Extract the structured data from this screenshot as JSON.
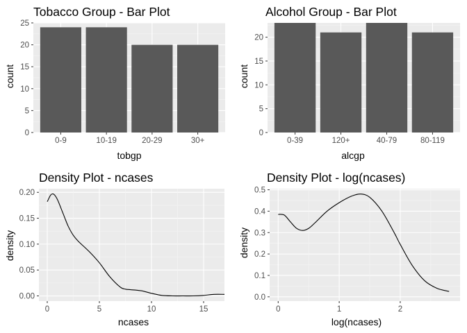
{
  "colors": {
    "panel_bg": "#ebebeb",
    "grid_major": "#ffffff",
    "grid_minor": "#f5f5f5",
    "bar_fill": "#595959",
    "line": "#000000",
    "tick_mark": "#333333",
    "tick_text": "#4d4d4d"
  },
  "chart_data": [
    {
      "type": "bar",
      "title": "Tobacco Group - Bar Plot",
      "xlabel": "tobgp",
      "ylabel": "count",
      "categories": [
        "0-9",
        "10-19",
        "20-29",
        "30+"
      ],
      "values": [
        24,
        24,
        20,
        20
      ],
      "ylim": [
        0,
        25
      ],
      "yticks": [
        0,
        5,
        10,
        15,
        20,
        25
      ],
      "ytick_labels": [
        "0",
        "5",
        "10",
        "15",
        "20",
        "25"
      ],
      "grid": true
    },
    {
      "type": "bar",
      "title": "Alcohol Group - Bar Plot",
      "xlabel": "alcgp",
      "ylabel": "count",
      "categories": [
        "0-39",
        "120+",
        "40-79",
        "80-119"
      ],
      "values": [
        23,
        21,
        23,
        21
      ],
      "ylim": [
        0,
        23
      ],
      "yticks": [
        0,
        5,
        10,
        15,
        20
      ],
      "ytick_labels": [
        "0",
        "5",
        "10",
        "15",
        "20"
      ],
      "grid": true
    },
    {
      "type": "line",
      "title": "Density Plot - ncases",
      "xlabel": "ncases",
      "ylabel": "density",
      "xlim": [
        -0.8,
        17
      ],
      "ylim": [
        -0.01,
        0.207
      ],
      "xticks": [
        0,
        5,
        10,
        15
      ],
      "xtick_labels": [
        "0",
        "5",
        "10",
        "15"
      ],
      "yticks": [
        0,
        0.05,
        0.1,
        0.15,
        0.2
      ],
      "ytick_labels": [
        "0.00",
        "0.05",
        "0.10",
        "0.15",
        "0.20"
      ],
      "grid": true,
      "x": [
        0,
        0.3,
        0.5,
        0.7,
        1.0,
        1.5,
        2.0,
        2.5,
        3.0,
        4.0,
        5.0,
        6.0,
        7.0,
        7.5,
        8.0,
        9.0,
        10.0,
        11.0,
        12.0,
        13.0,
        14.0,
        15.0,
        16.0,
        17.0
      ],
      "y": [
        0.182,
        0.194,
        0.197,
        0.195,
        0.185,
        0.16,
        0.135,
        0.117,
        0.105,
        0.086,
        0.064,
        0.037,
        0.017,
        0.013,
        0.012,
        0.01,
        0.005,
        0.001,
        0.0,
        0.0,
        0.0,
        0.001,
        0.003,
        0.003
      ]
    },
    {
      "type": "line",
      "title": "Density Plot - log(ncases)",
      "xlabel": "log(ncases)",
      "ylabel": "density",
      "xlim": [
        -0.14,
        2.98
      ],
      "ylim": [
        -0.02,
        0.505
      ],
      "xticks": [
        0,
        1,
        2
      ],
      "xtick_labels": [
        "0",
        "1",
        "2"
      ],
      "yticks": [
        0,
        0.1,
        0.2,
        0.3,
        0.4,
        0.5
      ],
      "ytick_labels": [
        "0.0",
        "0.1",
        "0.2",
        "0.3",
        "0.4",
        "0.5"
      ],
      "grid": true,
      "x": [
        0,
        0.1,
        0.2,
        0.3,
        0.4,
        0.5,
        0.6,
        0.8,
        1.0,
        1.2,
        1.35,
        1.5,
        1.7,
        1.9,
        2.0,
        2.2,
        2.4,
        2.6,
        2.8
      ],
      "y": [
        0.385,
        0.382,
        0.35,
        0.32,
        0.31,
        0.32,
        0.345,
        0.4,
        0.44,
        0.47,
        0.48,
        0.465,
        0.4,
        0.3,
        0.245,
        0.145,
        0.075,
        0.04,
        0.025
      ]
    }
  ]
}
